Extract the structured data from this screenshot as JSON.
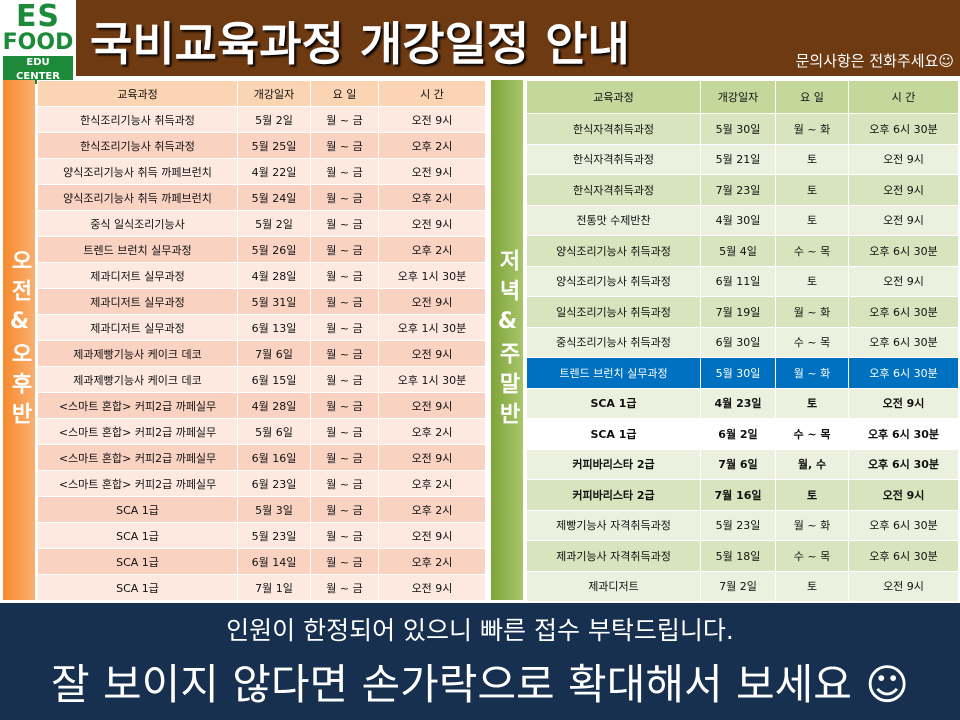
{
  "header": {
    "logo": {
      "line1": "ES",
      "line2": "FOOD",
      "line3": "EDU CENTER"
    },
    "title": "국비교육과정 개강일정 안내",
    "note": "문의사항은 전화주세요☺"
  },
  "day_table": {
    "side_label": "오전&오후반",
    "columns": [
      "교육과정",
      "개강일자",
      "요 일",
      "시 간"
    ],
    "rows": [
      [
        "한식조리기능사 취득과정",
        "5월 2일",
        "월 ~ 금",
        "오전 9시"
      ],
      [
        "한식조리기능사 취득과정",
        "5월 25일",
        "월 ~ 금",
        "오후 2시"
      ],
      [
        "양식조리기능사 취득 까페브런치",
        "4월 22일",
        "월 ~ 금",
        "오전 9시"
      ],
      [
        "양식조리기능사 취득 까페브런치",
        "5월 24일",
        "월 ~ 금",
        "오후 2시"
      ],
      [
        "중식 일식조리기능사",
        "5월 2일",
        "월 ~ 금",
        "오전 9시"
      ],
      [
        "트렌드 브런치 실무과정",
        "5월 26일",
        "월 ~ 금",
        "오후 2시"
      ],
      [
        "제과디저트 실무과정",
        "4월 28일",
        "월 ~ 금",
        "오후 1시 30분"
      ],
      [
        "제과디저트 실무과정",
        "5월 31일",
        "월 ~ 금",
        "오전 9시"
      ],
      [
        "제과디저트 실무과정",
        "6월 13일",
        "월 ~ 금",
        "오후 1시 30분"
      ],
      [
        "제과제빵기능사 케이크 데코",
        "7월 6일",
        "월 ~ 금",
        "오전 9시"
      ],
      [
        "제과제빵기능사 케이크 데코",
        "6월 15일",
        "월 ~ 금",
        "오후 1시 30분"
      ],
      [
        "<스마트 혼합> 커피2급 까페실무",
        "4월 28일",
        "월 ~ 금",
        "오전 9시"
      ],
      [
        "<스마트 혼합> 커피2급 까페실무",
        "5월 6일",
        "월 ~ 금",
        "오후 2시"
      ],
      [
        "<스마트 혼합> 커피2급 까페실무",
        "6월 16일",
        "월 ~ 금",
        "오전 9시"
      ],
      [
        "<스마트 혼합> 커피2급 까페실무",
        "6월 23일",
        "월 ~ 금",
        "오후 2시"
      ],
      [
        "SCA 1급",
        "5월 3일",
        "월 ~ 금",
        "오후 2시"
      ],
      [
        "SCA 1급",
        "5월 23일",
        "월 ~ 금",
        "오전 9시"
      ],
      [
        "SCA 1급",
        "6월 14일",
        "월 ~ 금",
        "오후 2시"
      ],
      [
        "SCA 1급",
        "7월 1일",
        "월 ~ 금",
        "오전 9시"
      ]
    ]
  },
  "evening_table": {
    "side_label": "저녁&주말반",
    "columns": [
      "교육과정",
      "개강일자",
      "요 일",
      "시 간"
    ],
    "rows": [
      [
        "한식자격취득과정",
        "5월 30일",
        "월 ~ 화",
        "오후 6시 30분"
      ],
      [
        "한식자격취득과정",
        "5월 21일",
        "토",
        "오전 9시"
      ],
      [
        "한식자격취득과정",
        "7월 23일",
        "토",
        "오전 9시"
      ],
      [
        "전통맛 수제반찬",
        "4월 30일",
        "토",
        "오전 9시"
      ],
      [
        "양식조리기능사 취득과정",
        "5월 4일",
        "수 ~ 목",
        "오후 6시 30분"
      ],
      [
        "양식조리기능사 취득과정",
        "6월 11일",
        "토",
        "오전 9시"
      ],
      [
        "일식조리기능사 취득과정",
        "7월 19일",
        "월 ~ 화",
        "오후 6시 30분"
      ],
      [
        "중식조리기능사 취득과정",
        "6월 30일",
        "수 ~ 목",
        "오후 6시 30분"
      ],
      [
        "트렌드 브런치 실무과정",
        "5월 30일",
        "월 ~ 화",
        "오후 6시 30분"
      ],
      [
        "SCA 1급",
        "4월 23일",
        "토",
        "오전 9시"
      ],
      [
        "SCA 1급",
        "6월 2일",
        "수 ~ 목",
        "오후 6시 30분"
      ],
      [
        "커피바리스타 2급",
        "7월 6일",
        "월, 수",
        "오후 6시 30분"
      ],
      [
        "커피바리스타 2급",
        "7월 16일",
        "토",
        "오전 9시"
      ],
      [
        "제빵기능사 자격취득과정",
        "5월 23일",
        "월 ~ 화",
        "오후 6시 30분"
      ],
      [
        "제과기능사 자격취득과정",
        "5월 18일",
        "수 ~ 목",
        "오후 6시 30분"
      ],
      [
        "제과디저트",
        "7월 2일",
        "토",
        "오전 9시"
      ]
    ]
  },
  "footer": {
    "line1": "인원이 한정되어 있으니 빠른 접수 부탁드립니다.",
    "line2": "잘 보이지 않다면 손가락으로 확대해서 보세요 ☺"
  }
}
